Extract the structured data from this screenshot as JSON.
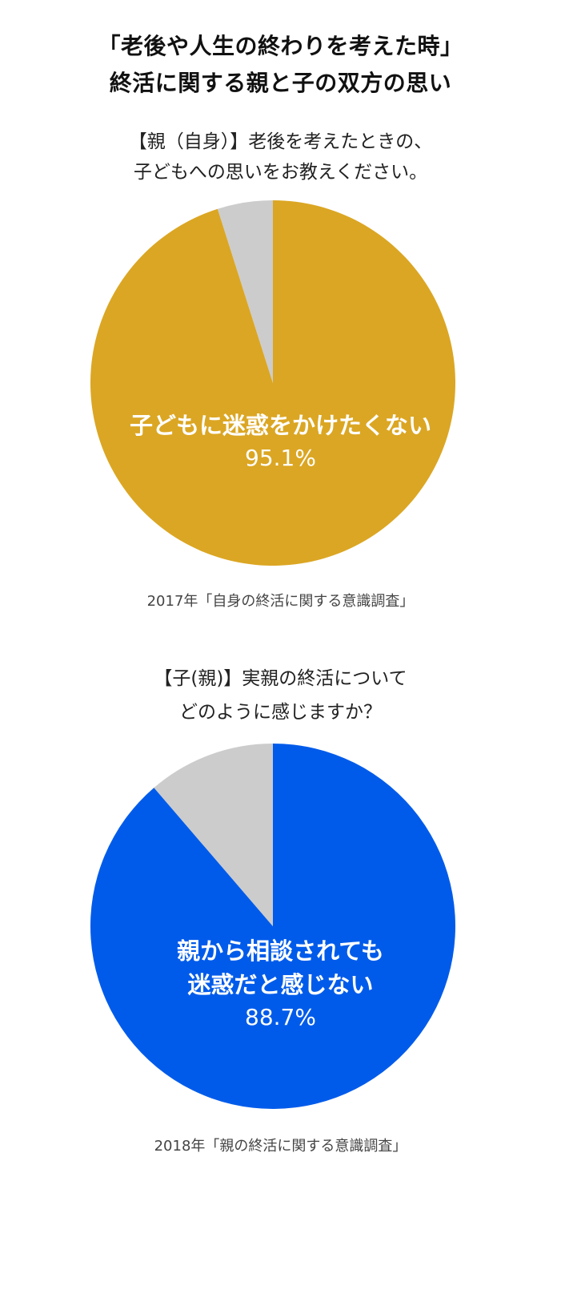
{
  "header": {
    "title_line1": "「老後や人生の終わりを考えた時」",
    "title_line2": "終活に関する親と子の双方の思い"
  },
  "chart_data": [
    {
      "type": "pie",
      "title_lines": [
        "【親（自身）】老後を考えたときの、",
        "子どもへの思いをお教えください。"
      ],
      "slices": [
        {
          "label": "子どもに迷惑をかけたくない",
          "value": 95.1,
          "display": "95.1%",
          "color": "#dba623"
        },
        {
          "label": "",
          "value": 4.9,
          "color": "#cccccc"
        }
      ],
      "source": "2017年「自身の終活に関する意識調査」"
    },
    {
      "type": "pie",
      "title_lines": [
        "【子(親)】実親の終活について",
        "どのように感じますか？"
      ],
      "slices": [
        {
          "label_lines": [
            "親から相談されても",
            "迷惑だと感じない"
          ],
          "value": 88.7,
          "display": "88.7%",
          "color": "#005bea"
        },
        {
          "label": "",
          "value": 11.3,
          "color": "#cccccc"
        }
      ],
      "source": "2018年「親の終活に関する意識調査」"
    }
  ]
}
